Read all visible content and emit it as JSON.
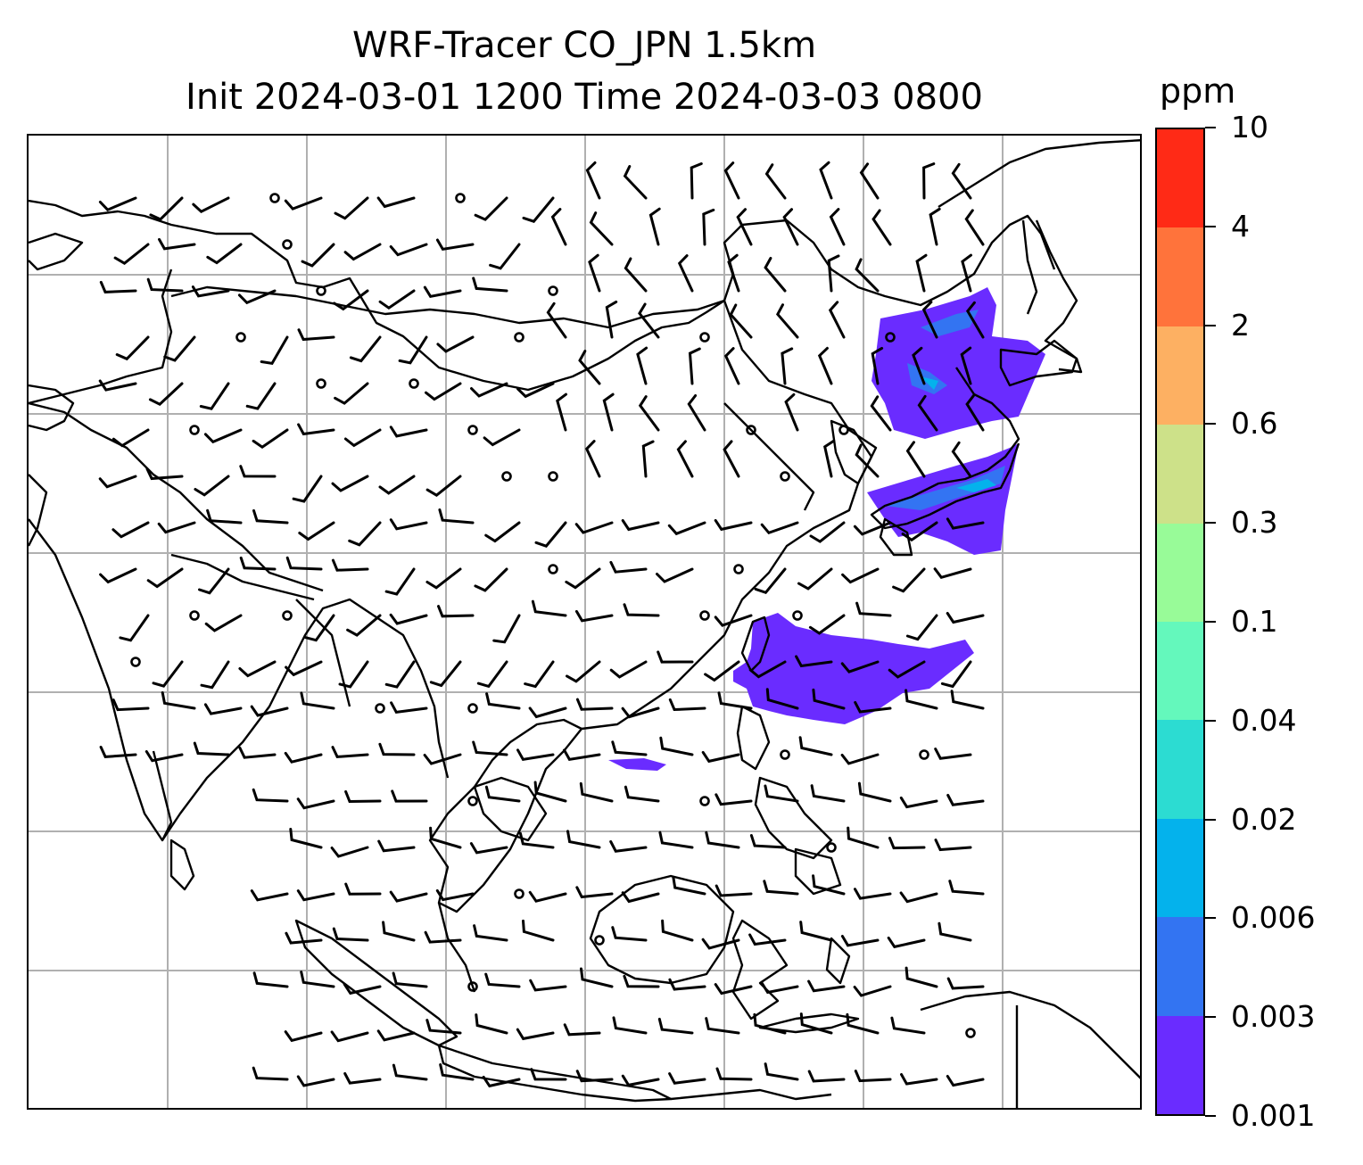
{
  "title": {
    "line1": "WRF-Tracer CO_JPN 1.5km",
    "line2": "Init 2024-03-01 1200 Time 2024-03-03 0800"
  },
  "colorbar": {
    "unit": "ppm",
    "ticks": [
      "0.001",
      "0.003",
      "0.006",
      "0.02",
      "0.04",
      "0.1",
      "0.3",
      "0.6",
      "2",
      "4",
      "10"
    ],
    "colors": [
      "#6a2cff",
      "#3374f2",
      "#04b2ec",
      "#2cdcd2",
      "#64f8bc",
      "#98fb98",
      "#cde189",
      "#fdb062",
      "#ff733b",
      "#ff2a16"
    ]
  },
  "map": {
    "gridlines": true,
    "coastline_color": "#000000",
    "grid_color": "#b0b0b0",
    "barb_color": "#000000",
    "plume_color": "#6a2cff",
    "plume_core_color": "#3374f2",
    "plume_peak_color": "#04b2ec"
  }
}
